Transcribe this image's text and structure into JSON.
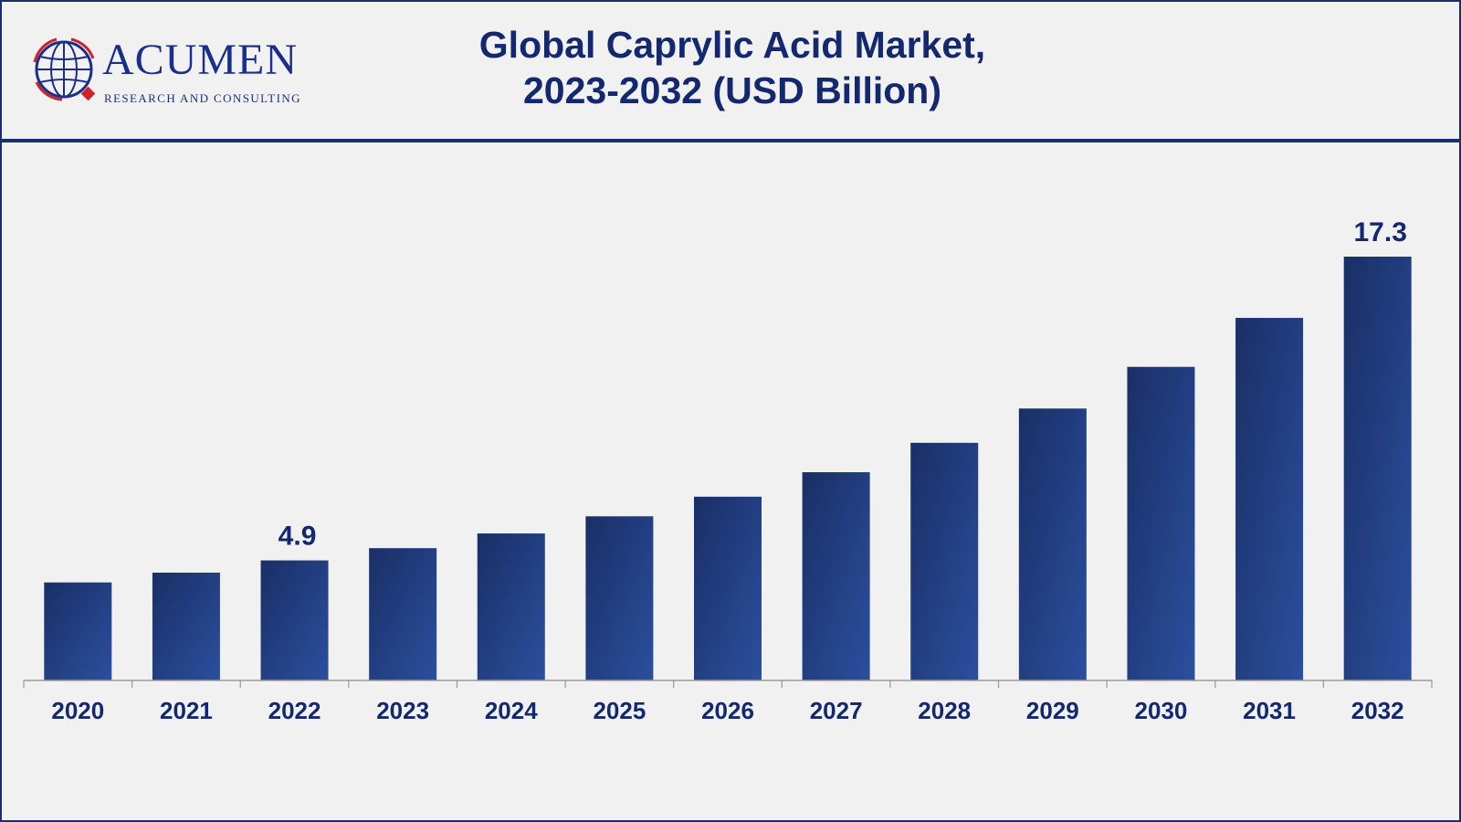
{
  "header": {
    "brand_name": "ACUMEN",
    "brand_tagline": "RESEARCH AND CONSULTING",
    "title_line1": "Global Caprylic Acid Market,",
    "title_line2": "2023-2032 (USD Billion)"
  },
  "chart_data": {
    "type": "bar",
    "title": "Global Caprylic Acid Market, 2023-2032 (USD Billion)",
    "xlabel": "",
    "ylabel": "",
    "categories": [
      "2020",
      "2021",
      "2022",
      "2023",
      "2024",
      "2025",
      "2026",
      "2027",
      "2028",
      "2029",
      "2030",
      "2031",
      "2032"
    ],
    "values": [
      4.0,
      4.4,
      4.9,
      5.4,
      6.0,
      6.7,
      7.5,
      8.5,
      9.7,
      11.1,
      12.8,
      14.8,
      17.3
    ],
    "labeled_values": {
      "2022": "4.9",
      "2032": "17.3"
    },
    "ylim": [
      0,
      20
    ],
    "grid": false,
    "legend": "none",
    "bar_color_dark": "#1a2f66",
    "bar_color_light": "#2b4f9e",
    "label_color": "#13286e"
  }
}
